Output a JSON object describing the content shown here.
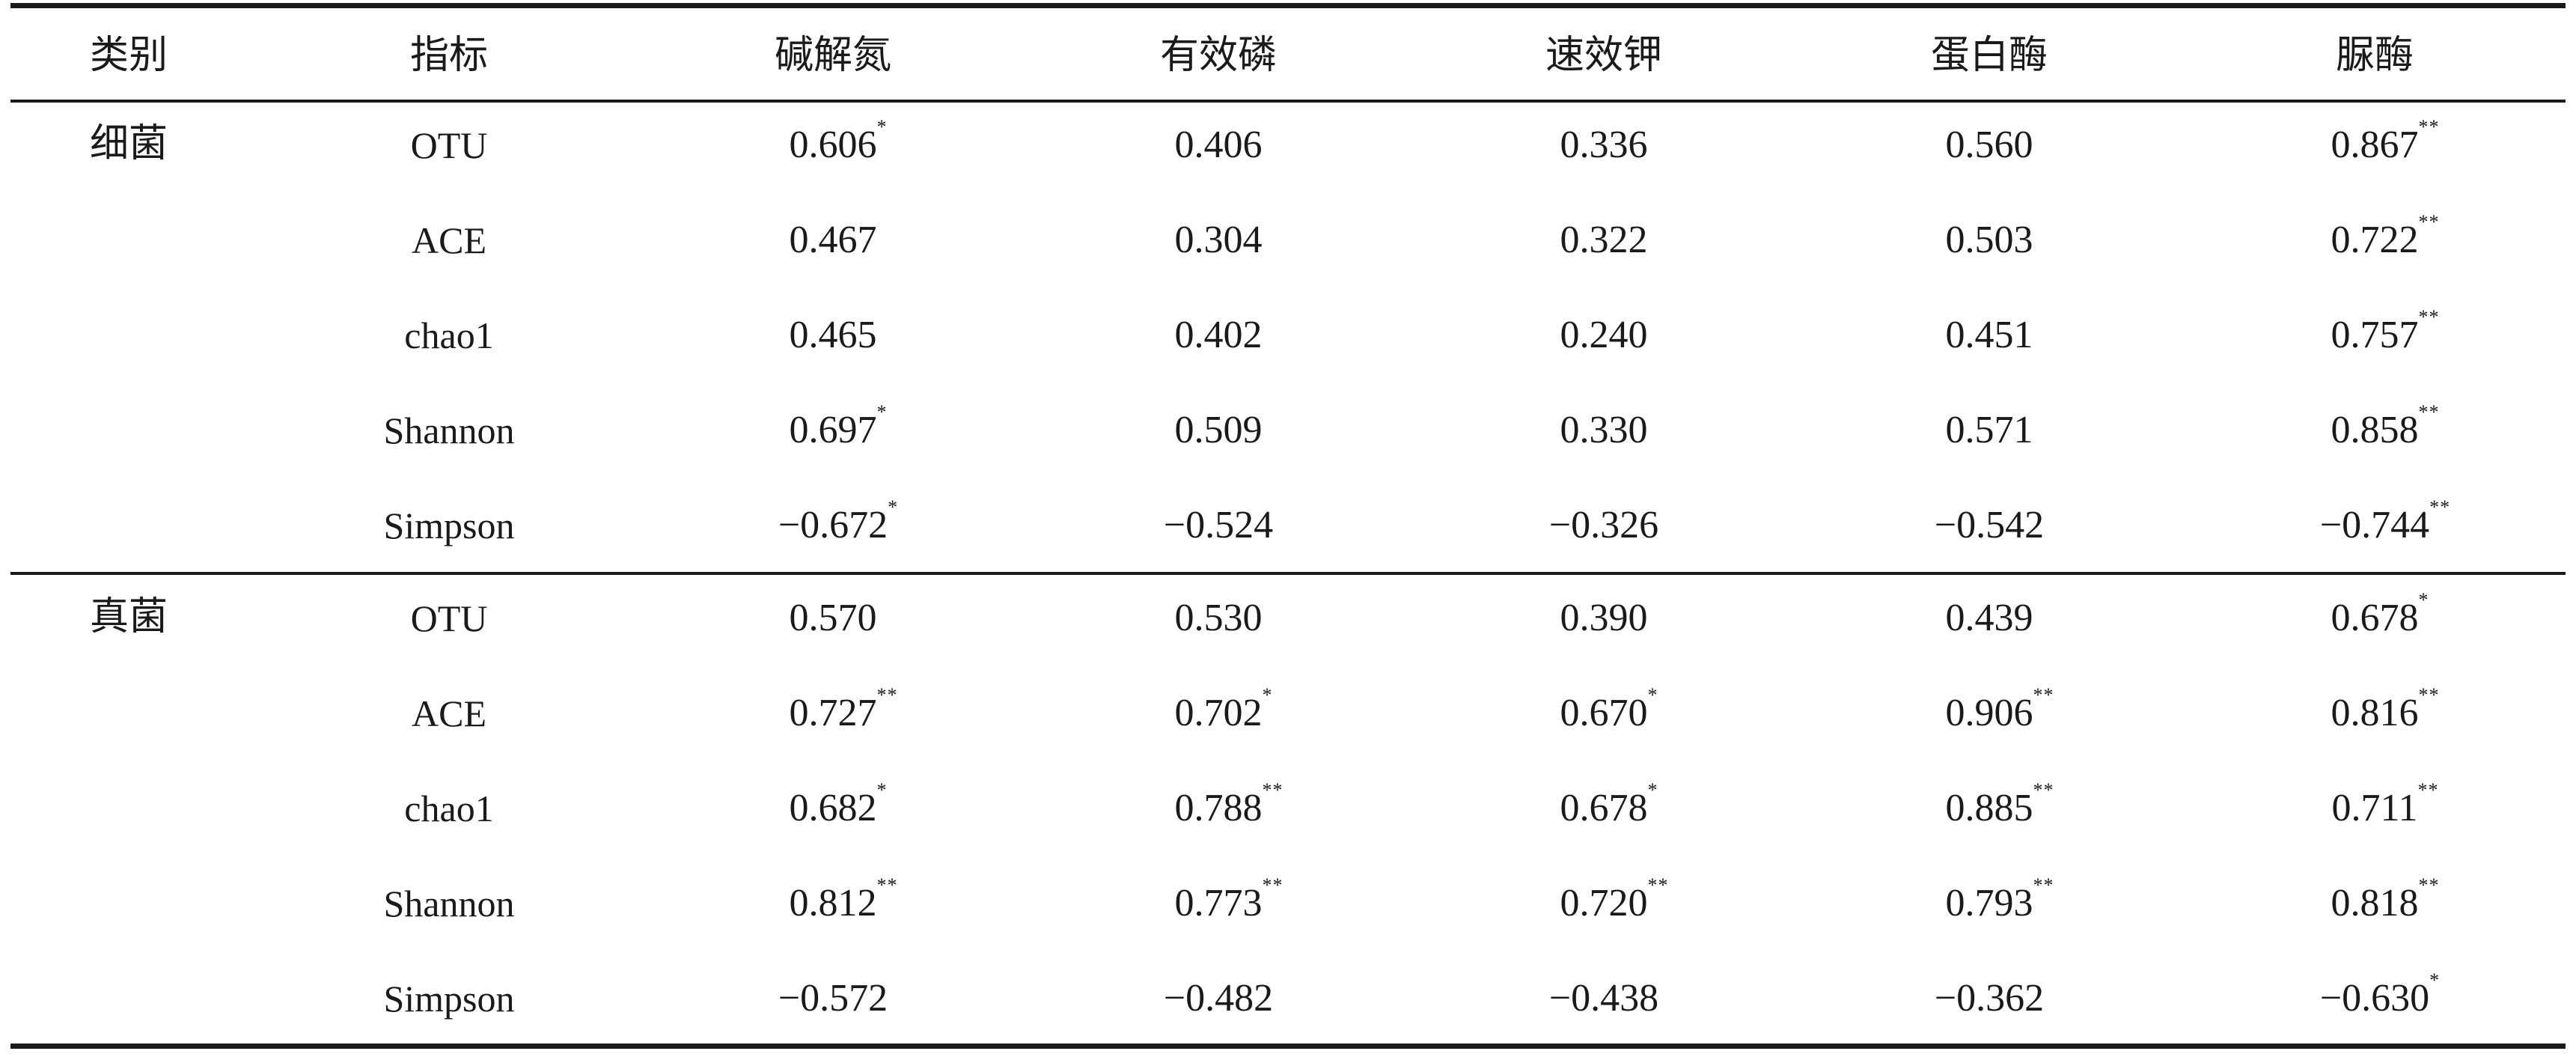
{
  "table": {
    "headers": [
      "类别",
      "指标",
      "碱解氮",
      "有效磷",
      "速效钾",
      "蛋白酶",
      "脲酶"
    ],
    "groups": [
      {
        "category": "细菌",
        "rows": [
          {
            "index": "OTU",
            "values": [
              {
                "v": "0.606",
                "s": "*"
              },
              {
                "v": "0.406",
                "s": ""
              },
              {
                "v": "0.336",
                "s": ""
              },
              {
                "v": "0.560",
                "s": ""
              },
              {
                "v": "0.867",
                "s": "**"
              }
            ]
          },
          {
            "index": "ACE",
            "values": [
              {
                "v": "0.467",
                "s": ""
              },
              {
                "v": "0.304",
                "s": ""
              },
              {
                "v": "0.322",
                "s": ""
              },
              {
                "v": "0.503",
                "s": ""
              },
              {
                "v": "0.722",
                "s": "**"
              }
            ]
          },
          {
            "index": "chao1",
            "values": [
              {
                "v": "0.465",
                "s": ""
              },
              {
                "v": "0.402",
                "s": ""
              },
              {
                "v": "0.240",
                "s": ""
              },
              {
                "v": "0.451",
                "s": ""
              },
              {
                "v": "0.757",
                "s": "**"
              }
            ]
          },
          {
            "index": "Shannon",
            "values": [
              {
                "v": "0.697",
                "s": "*"
              },
              {
                "v": "0.509",
                "s": ""
              },
              {
                "v": "0.330",
                "s": ""
              },
              {
                "v": "0.571",
                "s": ""
              },
              {
                "v": "0.858",
                "s": "**"
              }
            ]
          },
          {
            "index": "Simpson",
            "values": [
              {
                "v": "−0.672",
                "s": "*"
              },
              {
                "v": "−0.524",
                "s": ""
              },
              {
                "v": "−0.326",
                "s": ""
              },
              {
                "v": "−0.542",
                "s": ""
              },
              {
                "v": "−0.744",
                "s": "**"
              }
            ]
          }
        ]
      },
      {
        "category": "真菌",
        "rows": [
          {
            "index": "OTU",
            "values": [
              {
                "v": "0.570",
                "s": ""
              },
              {
                "v": "0.530",
                "s": ""
              },
              {
                "v": "0.390",
                "s": ""
              },
              {
                "v": "0.439",
                "s": ""
              },
              {
                "v": "0.678",
                "s": "*"
              }
            ]
          },
          {
            "index": "ACE",
            "values": [
              {
                "v": "0.727",
                "s": "**"
              },
              {
                "v": "0.702",
                "s": "*"
              },
              {
                "v": "0.670",
                "s": "*"
              },
              {
                "v": "0.906",
                "s": "**"
              },
              {
                "v": "0.816",
                "s": "**"
              }
            ]
          },
          {
            "index": "chao1",
            "values": [
              {
                "v": "0.682",
                "s": "*"
              },
              {
                "v": "0.788",
                "s": "**"
              },
              {
                "v": "0.678",
                "s": "*"
              },
              {
                "v": "0.885",
                "s": "**"
              },
              {
                "v": "0.711",
                "s": "**"
              }
            ]
          },
          {
            "index": "Shannon",
            "values": [
              {
                "v": "0.812",
                "s": "**"
              },
              {
                "v": "0.773",
                "s": "**"
              },
              {
                "v": "0.720",
                "s": "**"
              },
              {
                "v": "0.793",
                "s": "**"
              },
              {
                "v": "0.818",
                "s": "**"
              }
            ]
          },
          {
            "index": "Simpson",
            "values": [
              {
                "v": "−0.572",
                "s": ""
              },
              {
                "v": "−0.482",
                "s": ""
              },
              {
                "v": "−0.438",
                "s": ""
              },
              {
                "v": "−0.362",
                "s": ""
              },
              {
                "v": "−0.630",
                "s": "*"
              }
            ]
          }
        ]
      }
    ]
  }
}
